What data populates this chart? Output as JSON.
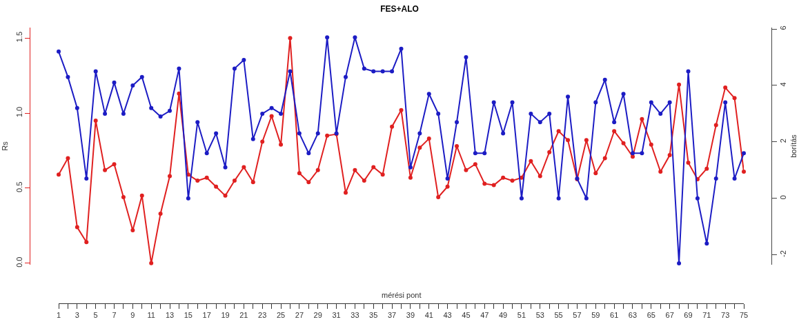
{
  "chart_data": {
    "type": "line",
    "title": "FES+ALO",
    "xlabel": "mérési pont",
    "ylabel": "Rs",
    "y2label": "borítás",
    "x": [
      1,
      2,
      3,
      4,
      5,
      6,
      7,
      8,
      9,
      10,
      11,
      12,
      13,
      14,
      15,
      16,
      17,
      18,
      19,
      20,
      21,
      22,
      23,
      24,
      25,
      26,
      27,
      28,
      29,
      30,
      31,
      32,
      33,
      34,
      35,
      36,
      37,
      38,
      39,
      40,
      41,
      42,
      43,
      44,
      45,
      46,
      47,
      48,
      49,
      50,
      51,
      52,
      53,
      54,
      55,
      56,
      57,
      58,
      59,
      60,
      61,
      62,
      63,
      64,
      65,
      66,
      67,
      68,
      69,
      70,
      71,
      72,
      73,
      74,
      75
    ],
    "series": [
      {
        "color": "#e02020",
        "values": [
          0.59,
          0.7,
          0.24,
          0.14,
          0.95,
          0.62,
          0.66,
          0.44,
          0.22,
          0.45,
          0.0,
          0.33,
          0.58,
          1.13,
          0.59,
          0.55,
          0.57,
          0.51,
          0.45,
          0.55,
          0.64,
          0.54,
          0.81,
          0.98,
          0.79,
          1.5,
          0.6,
          0.54,
          0.62,
          0.85,
          0.86,
          0.47,
          0.62,
          0.55,
          0.64,
          0.59,
          0.91,
          1.02,
          0.57,
          0.77,
          0.83,
          0.44,
          0.51,
          0.78,
          0.62,
          0.66,
          0.53,
          0.52,
          0.57,
          0.55,
          0.57,
          0.68,
          0.58,
          0.74,
          0.88,
          0.82,
          0.56,
          0.82,
          0.6,
          0.7,
          0.88,
          0.8,
          0.71,
          0.96,
          0.79,
          0.61,
          0.72,
          1.19,
          0.67,
          0.56,
          0.63,
          0.92,
          1.17,
          1.1,
          0.61
        ]
      },
      {
        "color": "#1c1cc4",
        "axis": "y2",
        "values": [
          5.2,
          4.3,
          3.2,
          0.7,
          4.5,
          3.0,
          4.1,
          3.0,
          4.0,
          4.3,
          3.2,
          2.9,
          3.1,
          4.6,
          0.0,
          2.7,
          1.6,
          2.3,
          1.1,
          4.6,
          4.9,
          2.1,
          3.0,
          3.2,
          3.0,
          4.5,
          2.3,
          1.6,
          2.3,
          5.7,
          2.3,
          4.3,
          5.7,
          4.6,
          4.5,
          4.5,
          4.5,
          5.3,
          1.1,
          2.3,
          3.7,
          3.0,
          0.7,
          2.7,
          5.0,
          1.6,
          1.6,
          3.4,
          2.3,
          3.4,
          0.0,
          3.0,
          2.7,
          3.0,
          0.0,
          3.6,
          0.7,
          0.0,
          3.4,
          4.2,
          2.7,
          3.7,
          1.6,
          1.6,
          3.4,
          3.0,
          3.4,
          -2.3,
          4.5,
          0.0,
          -1.6,
          0.7,
          3.4,
          0.7,
          1.6
        ]
      }
    ],
    "xlim": [
      1,
      75
    ],
    "xticks": [
      1,
      3,
      5,
      7,
      9,
      11,
      13,
      15,
      17,
      19,
      21,
      23,
      25,
      27,
      29,
      31,
      33,
      35,
      37,
      39,
      41,
      43,
      45,
      47,
      49,
      51,
      53,
      55,
      57,
      59,
      61,
      63,
      65,
      67,
      69,
      71,
      73,
      75
    ],
    "ylim": [
      -0.01,
      1.57
    ],
    "yticks": [
      {
        "value": 0,
        "label": "0.0"
      },
      {
        "value": 0.5,
        "label": "0.5"
      },
      {
        "value": 1,
        "label": "1.0"
      },
      {
        "value": 1.5,
        "label": "1.5"
      }
    ],
    "y2lim": [
      -2.35,
      6.05
    ],
    "y2ticks": [
      -2,
      0,
      2,
      4,
      6
    ],
    "grid": false,
    "marker": "circle",
    "line_style": "solid"
  }
}
